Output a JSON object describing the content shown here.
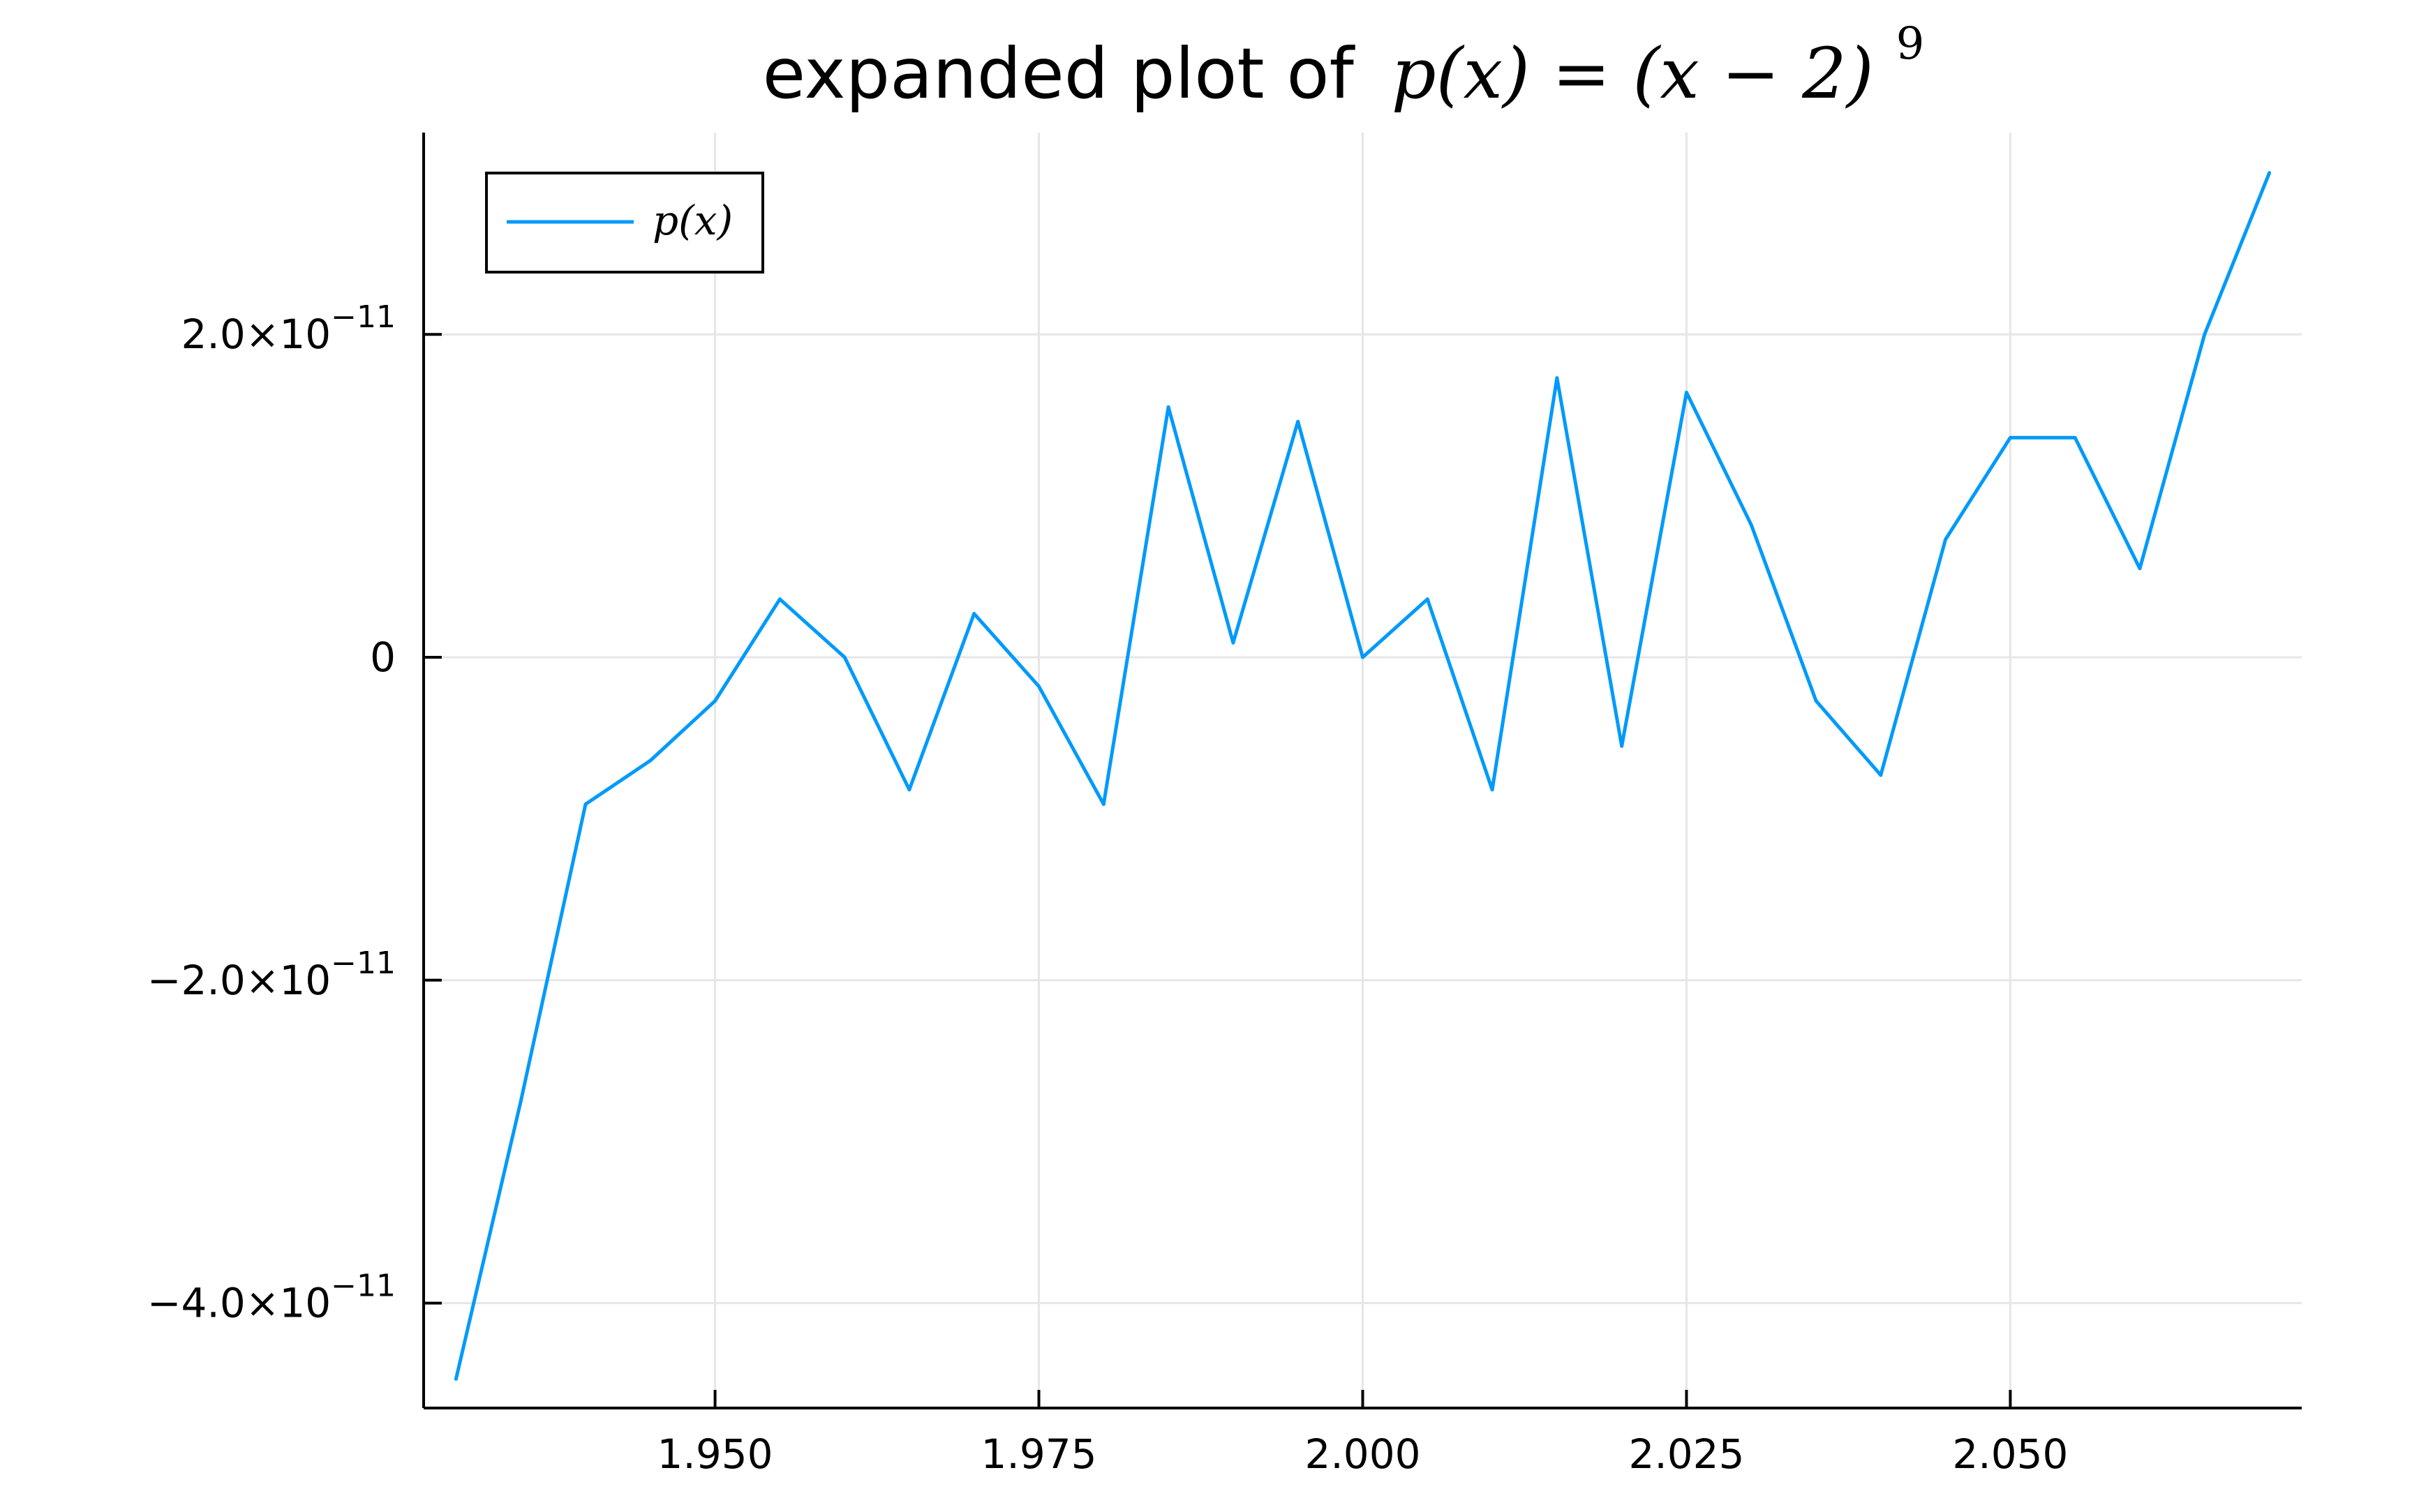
{
  "chart_data": {
    "type": "line",
    "title": {
      "prefix": "expanded plot of",
      "equation": "p(x) = (x − 2)",
      "exponent": "9"
    },
    "xlabel": "",
    "ylabel": "",
    "xlim": [
      1.9275,
      2.0725
    ],
    "ylim": [
      -4.65e-11,
      3.25e-11
    ],
    "grid": true,
    "legend_position": "top-left",
    "series": [
      {
        "name": "p(x)",
        "color": "#009AFA",
        "x": [
          1.93,
          1.935,
          1.94,
          1.945,
          1.95,
          1.955,
          1.96,
          1.965,
          1.97,
          1.975,
          1.98,
          1.985,
          1.99,
          1.995,
          2.0,
          2.005,
          2.01,
          2.015,
          2.02,
          2.025,
          2.03,
          2.035,
          2.04,
          2.045,
          2.05,
          2.055,
          2.06,
          2.065,
          2.07
        ],
        "y": [
          -4.47e-11,
          -2.75e-11,
          -9.1e-12,
          -6.4e-12,
          -2.7e-12,
          3.6e-12,
          0.0,
          -8.2e-12,
          2.7e-12,
          -1.8e-12,
          -9.1e-12,
          1.55e-11,
          9e-13,
          1.46e-11,
          0.0,
          3.6e-12,
          -8.2e-12,
          1.73e-11,
          -5.5e-12,
          1.64e-11,
          8.2e-12,
          -2.7e-12,
          -7.3e-12,
          7.3e-12,
          1.36e-11,
          1.36e-11,
          5.5e-12,
          2e-11,
          3e-11
        ]
      }
    ],
    "x_ticks": [
      {
        "value": 1.95,
        "label": "1.950"
      },
      {
        "value": 1.975,
        "label": "1.975"
      },
      {
        "value": 2.0,
        "label": "2.000"
      },
      {
        "value": 2.025,
        "label": "2.025"
      },
      {
        "value": 2.05,
        "label": "2.050"
      }
    ],
    "y_ticks": [
      {
        "value": -4e-11,
        "mantissa": "−4.0×10",
        "exponent": "−11"
      },
      {
        "value": -2e-11,
        "mantissa": "−2.0×10",
        "exponent": "−11"
      },
      {
        "value": 0,
        "mantissa": "0",
        "exponent": ""
      },
      {
        "value": 2e-11,
        "mantissa": "2.0×10",
        "exponent": "−11"
      }
    ],
    "colors": {
      "axis": "#000000",
      "grid": "#e6e6e6",
      "line": "#009AFA",
      "background": "#ffffff"
    }
  }
}
